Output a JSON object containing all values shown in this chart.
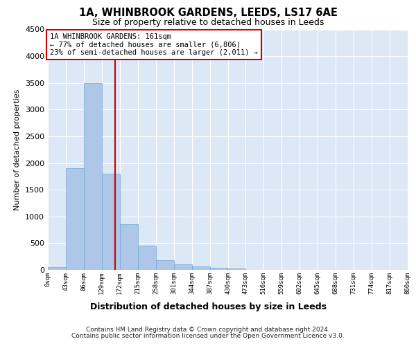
{
  "title_line1": "1A, WHINBROOK GARDENS, LEEDS, LS17 6AE",
  "title_line2": "Size of property relative to detached houses in Leeds",
  "xlabel": "Distribution of detached houses by size in Leeds",
  "ylabel": "Number of detached properties",
  "annotation_line1": "1A WHINBROOK GARDENS: 161sqm",
  "annotation_line2": "← 77% of detached houses are smaller (6,806)",
  "annotation_line3": "23% of semi-detached houses are larger (2,011) →",
  "property_size_sqm": 161,
  "bin_edges": [
    0,
    43,
    86,
    129,
    172,
    215,
    258,
    301,
    344,
    387,
    430,
    473,
    516,
    559,
    602,
    645,
    688,
    731,
    774,
    817,
    860
  ],
  "bar_values": [
    50,
    1900,
    3500,
    1800,
    850,
    450,
    175,
    100,
    60,
    40,
    20,
    0,
    0,
    0,
    0,
    0,
    0,
    0,
    0,
    0
  ],
  "bar_color": "#aec6e8",
  "bar_edgecolor": "#6fa8d4",
  "vline_color": "#cc0000",
  "vline_x": 161,
  "background_color": "#dce8f5",
  "ylim": [
    0,
    4500
  ],
  "yticks": [
    0,
    500,
    1000,
    1500,
    2000,
    2500,
    3000,
    3500,
    4000,
    4500
  ],
  "footer_line1": "Contains HM Land Registry data © Crown copyright and database right 2024.",
  "footer_line2": "Contains public sector information licensed under the Open Government Licence v3.0."
}
